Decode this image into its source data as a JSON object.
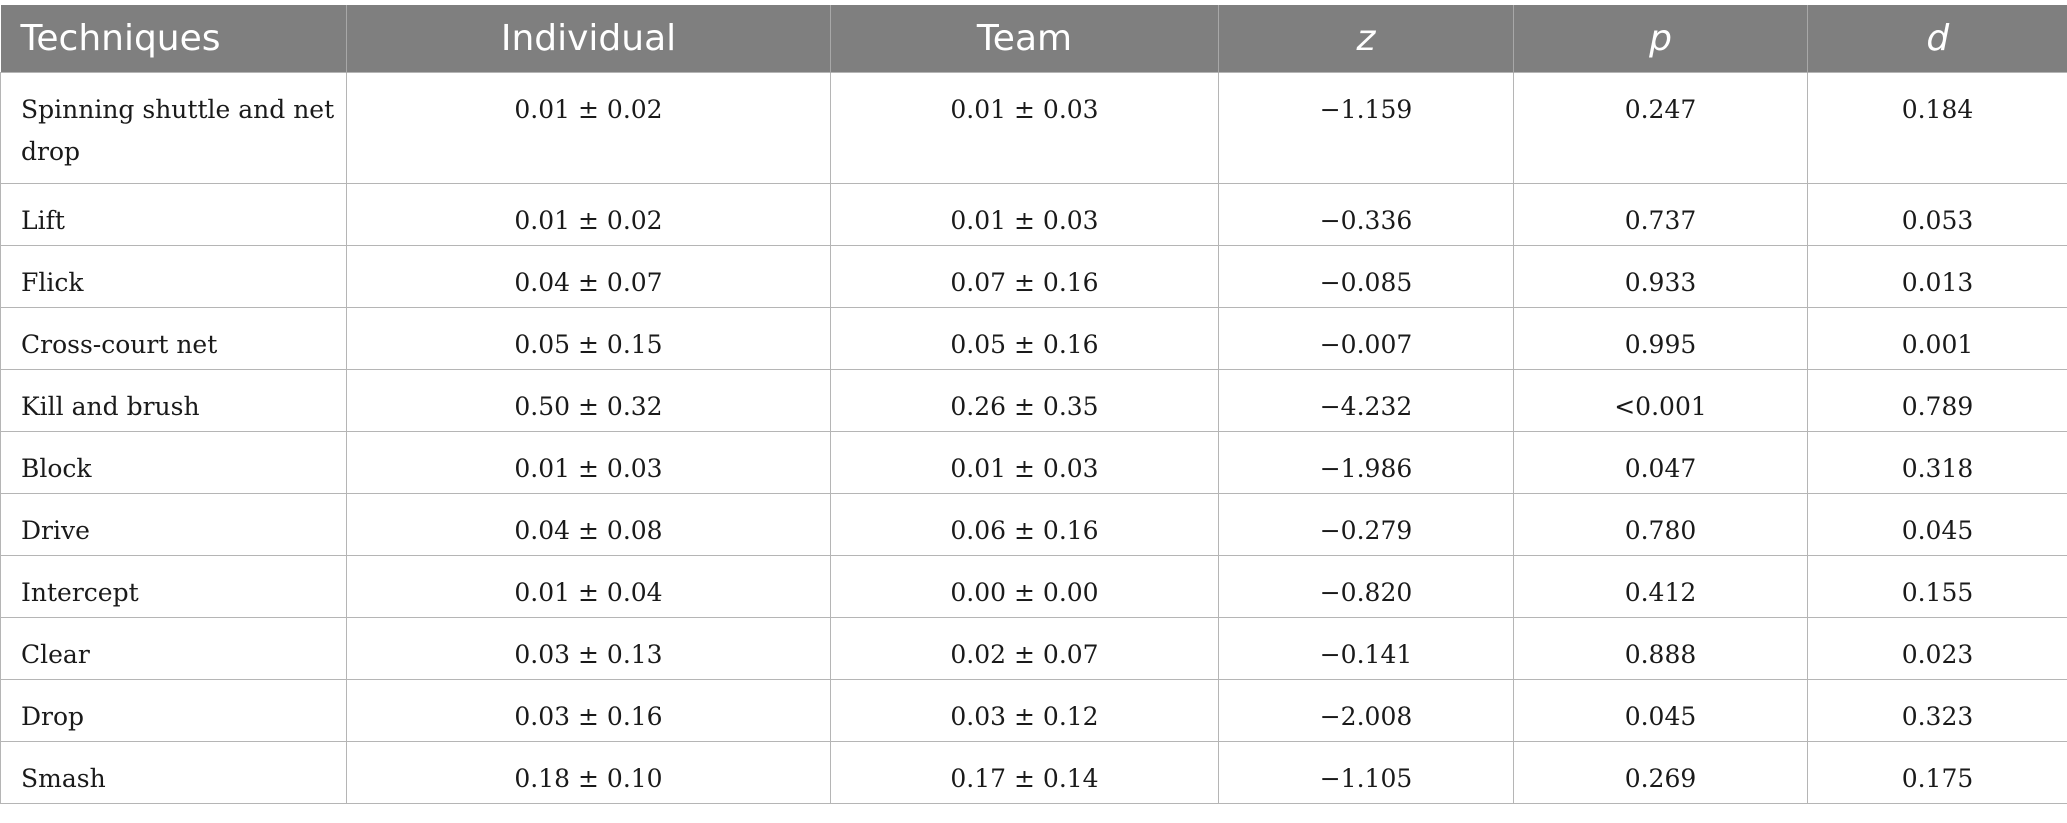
{
  "table": {
    "headers": [
      "Techniques",
      "Individual",
      "Team",
      "z",
      "p",
      "d"
    ],
    "rows": [
      [
        "Spinning shuttle and net drop",
        "0.01 ± 0.02",
        "0.01 ± 0.03",
        "−1.159",
        "0.247",
        "0.184"
      ],
      [
        "Lift",
        "0.01 ± 0.02",
        "0.01 ± 0.03",
        "−0.336",
        "0.737",
        "0.053"
      ],
      [
        "Flick",
        "0.04 ± 0.07",
        "0.07 ± 0.16",
        "−0.085",
        "0.933",
        "0.013"
      ],
      [
        "Cross-court net",
        "0.05 ± 0.15",
        "0.05 ± 0.16",
        "−0.007",
        "0.995",
        "0.001"
      ],
      [
        "Kill and brush",
        "0.50 ± 0.32",
        "0.26 ± 0.35",
        "−4.232",
        "<0.001",
        "0.789"
      ],
      [
        "Block",
        "0.01 ± 0.03",
        "0.01 ± 0.03",
        "−1.986",
        "0.047",
        "0.318"
      ],
      [
        "Drive",
        "0.04 ± 0.08",
        "0.06 ± 0.16",
        "−0.279",
        "0.780",
        "0.045"
      ],
      [
        "Intercept",
        "0.01 ± 0.04",
        "0.00 ± 0.00",
        "−0.820",
        "0.412",
        "0.155"
      ],
      [
        "Clear",
        "0.03 ± 0.13",
        "0.02 ± 0.07",
        "−0.141",
        "0.888",
        "0.023"
      ],
      [
        "Drop",
        "0.03 ± 0.16",
        "0.03 ± 0.12",
        "−2.008",
        "0.045",
        "0.323"
      ],
      [
        "Smash",
        "0.18 ± 0.10",
        "0.17 ± 0.14",
        "−1.105",
        "0.269",
        "0.175"
      ]
    ]
  },
  "colors": {
    "header_bg": "#7f7f7f",
    "header_text": "#ffffff",
    "grid": "#b5b5b5"
  }
}
